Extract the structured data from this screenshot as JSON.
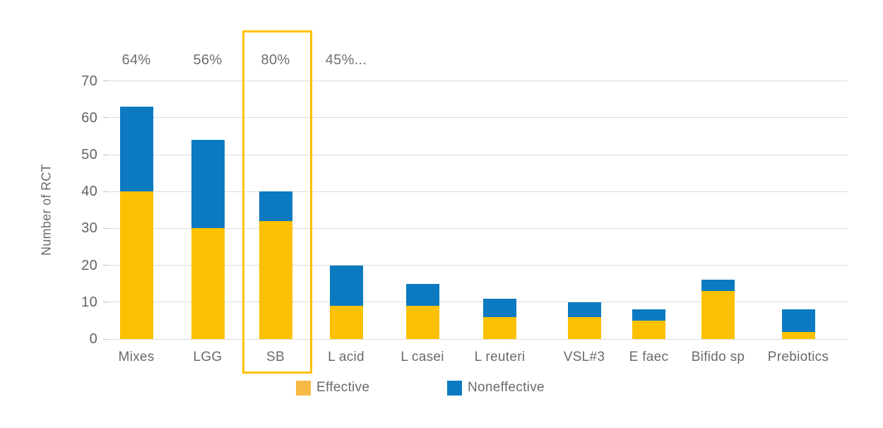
{
  "chart_data": {
    "type": "bar",
    "stacked": true,
    "title": "",
    "xlabel": "",
    "ylabel": "Number of RCT",
    "categories": [
      "Mixes",
      "LGG",
      "SB",
      "L acid",
      "L casei",
      "L reuteri",
      "VSL#3",
      "E faec",
      "Bifido sp",
      "Prebiotics"
    ],
    "series": [
      {
        "name": "Effective",
        "color": "#fcc102",
        "values": [
          40,
          30,
          32,
          9,
          9,
          6,
          6,
          5,
          13,
          2
        ]
      },
      {
        "name": "Noneffective",
        "color": "#0b7ac0",
        "values": [
          23,
          24,
          8,
          11,
          6,
          5,
          4,
          3,
          3,
          6
        ]
      }
    ],
    "totals": [
      63,
      54,
      40,
      20,
      15,
      11,
      10,
      8,
      16,
      8
    ],
    "percent_labels": [
      "64%",
      "56%",
      "80%",
      "45%...",
      "",
      "",
      "",
      "",
      "",
      ""
    ],
    "yticks": [
      0,
      10,
      20,
      30,
      40,
      50,
      60,
      70
    ],
    "ylim": [
      0,
      70
    ],
    "grid": true,
    "legend_position": "bottom",
    "highlighted_category": "SB"
  },
  "colors": {
    "effective_bar": "#fcc102",
    "noneffective_bar": "#0b7ac0",
    "legend_effective_swatch": "#f8ba47",
    "legend_noneffective_swatch": "#0b7ac0",
    "highlight_border": "#ffc000",
    "gridline": "#dcdcdc",
    "text": "#6a6a6a"
  }
}
